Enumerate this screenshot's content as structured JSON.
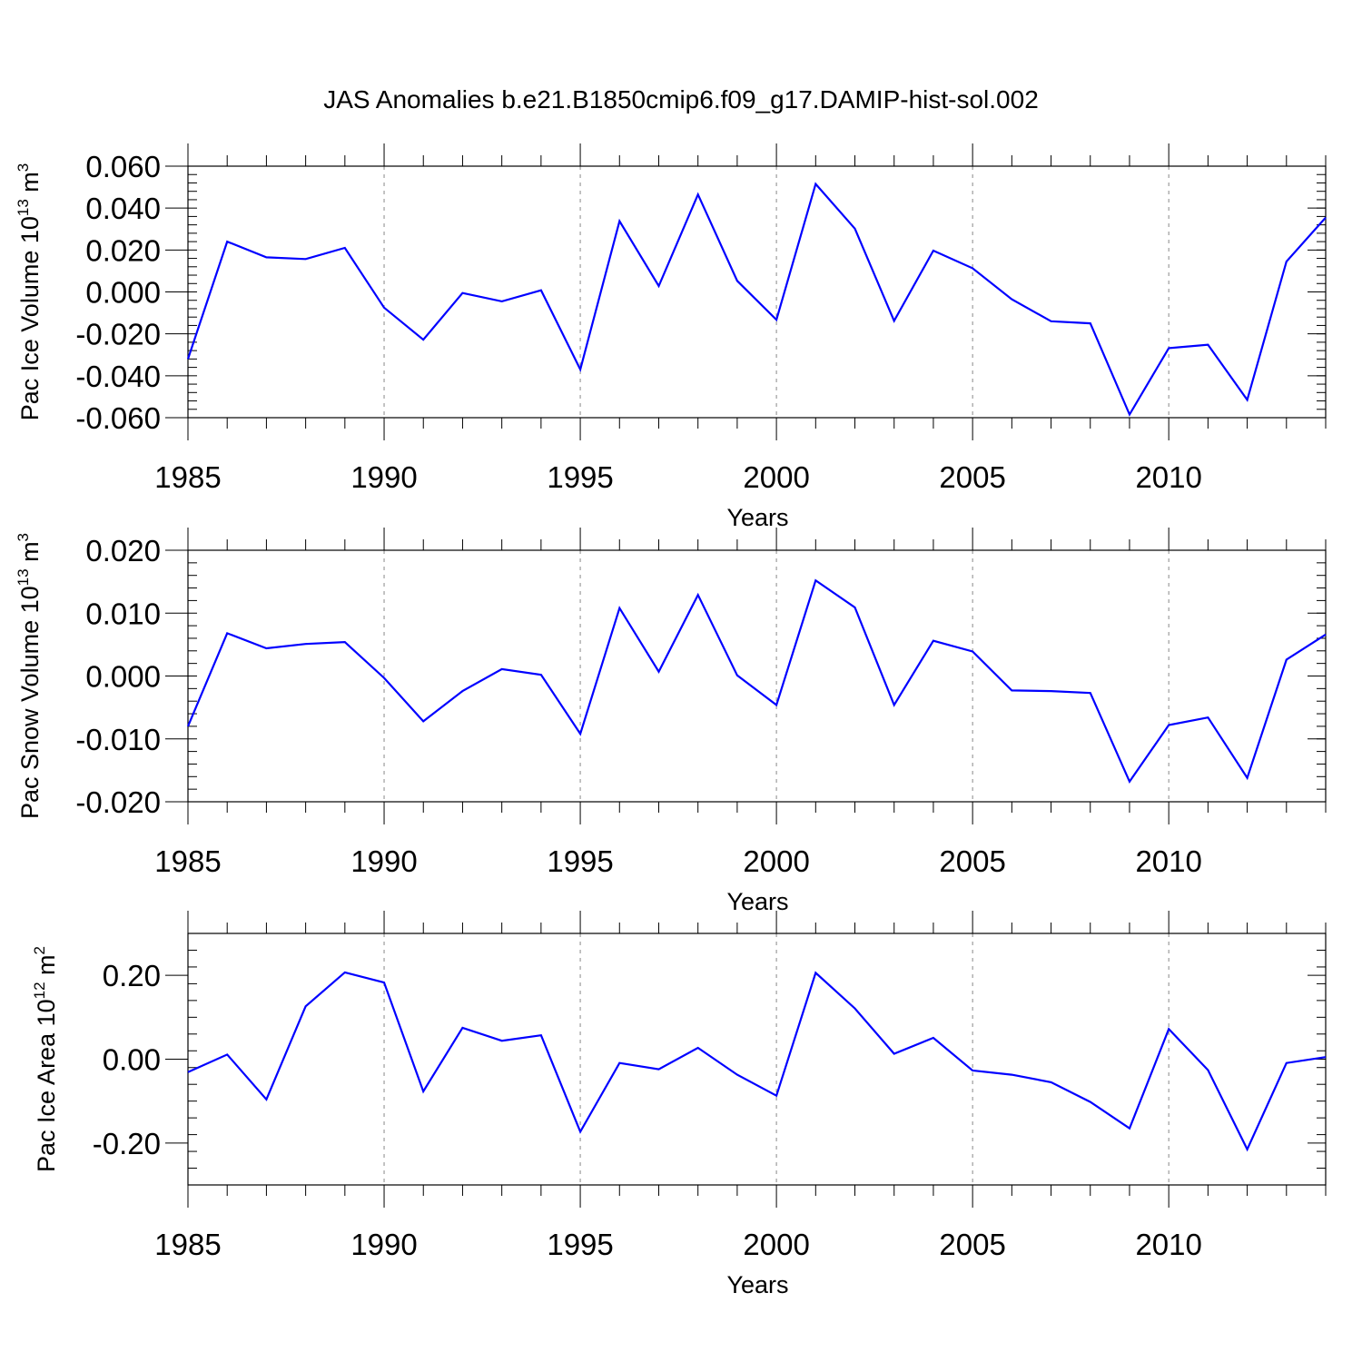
{
  "figure": {
    "title": "JAS Anomalies b.e21.B1850cmip6.f09_g17.DAMIP-hist-sol.002"
  },
  "colors": {
    "series": "#0000ff",
    "axis": "#000000",
    "grid": "#888888"
  },
  "chart_data": [
    {
      "type": "line",
      "ylabel": {
        "prefix": "Pac Ice Volume 10",
        "exp": "13",
        "mid": " m",
        "unit_exp": "3"
      },
      "xlabel": "Years",
      "xlim": [
        1985,
        2014
      ],
      "ylim": [
        -0.06,
        0.06
      ],
      "x_ticks": [
        1985,
        1990,
        1995,
        2000,
        2005,
        2010
      ],
      "x_tick_labels": [
        "1985",
        "1990",
        "1995",
        "2000",
        "2005",
        "2010"
      ],
      "y_ticks": [
        0.06,
        0.04,
        0.02,
        0.0,
        -0.02,
        -0.04,
        -0.06
      ],
      "y_tick_labels": [
        "0.060",
        "0.040",
        "0.020",
        "0.000",
        "-0.020",
        "-0.040",
        "-0.060"
      ],
      "grid": "dashed vertical at major x ticks",
      "x": [
        1985,
        1986,
        1987,
        1988,
        1989,
        1990,
        1991,
        1992,
        1993,
        1994,
        1995,
        1996,
        1997,
        1998,
        1999,
        2000,
        2001,
        2002,
        2003,
        2004,
        2005,
        2006,
        2007,
        2008,
        2009,
        2010,
        2011,
        2012,
        2013,
        2014
      ],
      "series": [
        {
          "values": [
            -0.032,
            0.024,
            0.0165,
            0.0157,
            0.021,
            -0.0075,
            -0.0228,
            -0.0005,
            -0.0045,
            0.0008,
            -0.037,
            0.0338,
            0.0028,
            0.0465,
            0.0053,
            -0.0133,
            0.0515,
            0.0302,
            -0.0138,
            0.0197,
            0.0113,
            -0.0035,
            -0.014,
            -0.015,
            -0.0585,
            -0.0268,
            -0.0252,
            -0.0515,
            0.0145,
            0.0355
          ]
        }
      ]
    },
    {
      "type": "line",
      "ylabel": {
        "prefix": "Pac Snow Volume 10",
        "exp": "13",
        "mid": " m",
        "unit_exp": "3"
      },
      "xlabel": "Years",
      "xlim": [
        1985,
        2014
      ],
      "ylim": [
        -0.02,
        0.02
      ],
      "x_ticks": [
        1985,
        1990,
        1995,
        2000,
        2005,
        2010
      ],
      "x_tick_labels": [
        "1985",
        "1990",
        "1995",
        "2000",
        "2005",
        "2010"
      ],
      "y_ticks": [
        0.02,
        0.01,
        0.0,
        -0.01,
        -0.02
      ],
      "y_tick_labels": [
        "0.020",
        "0.010",
        "0.000",
        "-0.010",
        "-0.020"
      ],
      "grid": "dashed vertical at major x ticks",
      "x": [
        1985,
        1986,
        1987,
        1988,
        1989,
        1990,
        1991,
        1992,
        1993,
        1994,
        1995,
        1996,
        1997,
        1998,
        1999,
        2000,
        2001,
        2002,
        2003,
        2004,
        2005,
        2006,
        2007,
        2008,
        2009,
        2010,
        2011,
        2012,
        2013,
        2014
      ],
      "series": [
        {
          "values": [
            -0.008,
            0.0068,
            0.0044,
            0.0051,
            0.0054,
            -0.0003,
            -0.0072,
            -0.0024,
            0.0011,
            0.0002,
            -0.0092,
            0.0108,
            0.0007,
            0.0129,
            0.0001,
            -0.0046,
            0.0152,
            0.0109,
            -0.0046,
            0.0056,
            0.0039,
            -0.0023,
            -0.0024,
            -0.0027,
            -0.0168,
            -0.0078,
            -0.0066,
            -0.0162,
            0.0026,
            0.0066
          ]
        }
      ]
    },
    {
      "type": "line",
      "ylabel": {
        "prefix": "Pac Ice Area 10",
        "exp": "12",
        "mid": " m",
        "unit_exp": "2"
      },
      "xlabel": "Years",
      "xlim": [
        1985,
        2014
      ],
      "ylim": [
        -0.3,
        0.3
      ],
      "x_ticks": [
        1985,
        1990,
        1995,
        2000,
        2005,
        2010
      ],
      "x_tick_labels": [
        "1985",
        "1990",
        "1995",
        "2000",
        "2005",
        "2010"
      ],
      "y_ticks": [
        0.2,
        0.0,
        -0.2
      ],
      "y_tick_labels": [
        "0.20",
        "0.00",
        "-0.20"
      ],
      "grid": "dashed vertical at major x ticks",
      "x": [
        1985,
        1986,
        1987,
        1988,
        1989,
        1990,
        1991,
        1992,
        1993,
        1994,
        1995,
        1996,
        1997,
        1998,
        1999,
        2000,
        2001,
        2002,
        2003,
        2004,
        2005,
        2006,
        2007,
        2008,
        2009,
        2010,
        2011,
        2012,
        2013,
        2014
      ],
      "series": [
        {
          "values": [
            -0.031,
            0.011,
            -0.096,
            0.126,
            0.207,
            0.183,
            -0.077,
            0.075,
            0.044,
            0.057,
            -0.173,
            -0.009,
            -0.024,
            0.027,
            -0.037,
            -0.087,
            0.206,
            0.121,
            0.013,
            0.051,
            -0.027,
            -0.037,
            -0.055,
            -0.102,
            -0.165,
            0.072,
            -0.026,
            -0.215,
            -0.009,
            0.005
          ]
        }
      ]
    }
  ]
}
